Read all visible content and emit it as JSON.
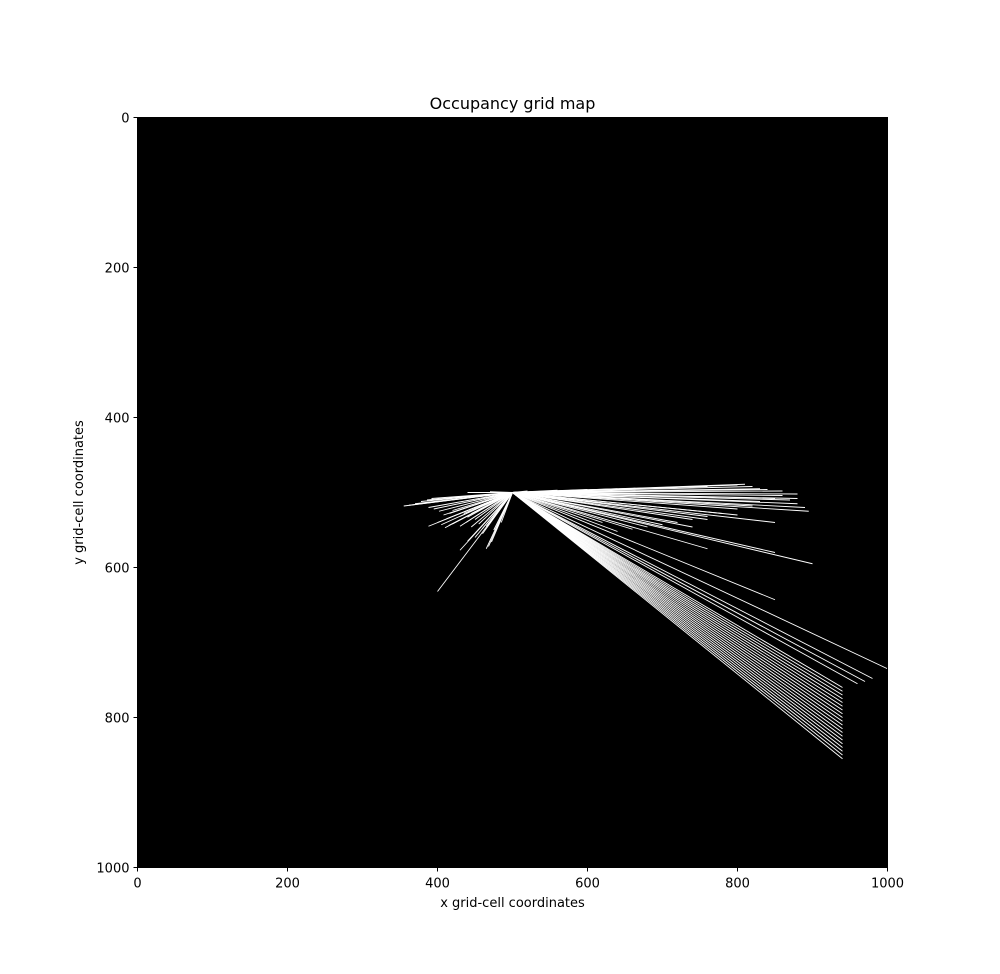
{
  "chart_data": {
    "type": "heatmap",
    "title": "Occupancy grid map",
    "xlabel": "x grid-cell coordinates",
    "ylabel": "y grid-cell coordinates",
    "xlim": [
      0,
      1000
    ],
    "ylim": [
      1000,
      0
    ],
    "xticks": [
      0,
      200,
      400,
      600,
      800,
      1000
    ],
    "yticks": [
      0,
      200,
      400,
      600,
      800,
      1000
    ],
    "colormap": {
      "free": "#ffffff",
      "unknown": "#000000"
    },
    "sensor_origin": [
      500,
      500
    ],
    "ray_endpoints": [
      [
        355,
        518
      ],
      [
        362,
        517
      ],
      [
        370,
        515
      ],
      [
        378,
        512
      ],
      [
        386,
        510
      ],
      [
        392,
        508
      ],
      [
        388,
        520
      ],
      [
        395,
        522
      ],
      [
        402,
        525
      ],
      [
        408,
        530
      ],
      [
        412,
        535
      ],
      [
        416,
        528
      ],
      [
        420,
        524
      ],
      [
        425,
        530
      ],
      [
        430,
        532
      ],
      [
        435,
        528
      ],
      [
        440,
        533
      ],
      [
        445,
        528
      ],
      [
        388,
        545
      ],
      [
        400,
        540
      ],
      [
        405,
        543
      ],
      [
        410,
        547
      ],
      [
        415,
        544
      ],
      [
        420,
        542
      ],
      [
        430,
        545
      ],
      [
        438,
        540
      ],
      [
        445,
        546
      ],
      [
        450,
        536
      ],
      [
        455,
        542
      ],
      [
        460,
        548
      ],
      [
        465,
        545
      ],
      [
        470,
        540
      ],
      [
        475,
        550
      ],
      [
        480,
        545
      ],
      [
        485,
        540
      ],
      [
        430,
        577
      ],
      [
        440,
        565
      ],
      [
        450,
        560
      ],
      [
        460,
        555
      ],
      [
        465,
        575
      ],
      [
        468,
        572
      ],
      [
        472,
        566
      ],
      [
        400,
        632
      ],
      [
        440,
        500
      ],
      [
        470,
        499
      ],
      [
        520,
        498
      ],
      [
        560,
        497
      ],
      [
        600,
        496
      ],
      [
        640,
        495
      ],
      [
        680,
        494
      ],
      [
        720,
        493
      ],
      [
        760,
        492
      ],
      [
        800,
        490
      ],
      [
        810,
        489
      ],
      [
        820,
        492
      ],
      [
        830,
        495
      ],
      [
        840,
        496
      ],
      [
        860,
        498
      ],
      [
        880,
        502
      ],
      [
        880,
        508
      ],
      [
        870,
        510
      ],
      [
        880,
        515
      ],
      [
        890,
        520
      ],
      [
        895,
        525
      ],
      [
        860,
        504
      ],
      [
        850,
        508
      ],
      [
        830,
        512
      ],
      [
        820,
        518
      ],
      [
        800,
        522
      ],
      [
        780,
        528
      ],
      [
        760,
        532
      ],
      [
        740,
        536
      ],
      [
        720,
        540
      ],
      [
        700,
        543
      ],
      [
        680,
        546
      ],
      [
        660,
        549
      ],
      [
        640,
        552
      ],
      [
        620,
        540
      ],
      [
        850,
        540
      ],
      [
        800,
        530
      ],
      [
        760,
        536
      ],
      [
        740,
        546
      ],
      [
        760,
        575
      ],
      [
        850,
        580
      ],
      [
        900,
        595
      ],
      [
        850,
        643
      ],
      [
        1000,
        735
      ],
      [
        980,
        748
      ],
      [
        970,
        752
      ],
      [
        960,
        755
      ],
      [
        940,
        760
      ],
      [
        940,
        765
      ],
      [
        940,
        770
      ],
      [
        940,
        775
      ],
      [
        940,
        780
      ],
      [
        940,
        785
      ],
      [
        940,
        790
      ],
      [
        940,
        795
      ],
      [
        940,
        800
      ],
      [
        940,
        805
      ],
      [
        940,
        810
      ],
      [
        940,
        815
      ],
      [
        940,
        820
      ],
      [
        940,
        825
      ],
      [
        940,
        830
      ],
      [
        940,
        835
      ],
      [
        940,
        840
      ],
      [
        940,
        845
      ],
      [
        940,
        850
      ],
      [
        940,
        855
      ]
    ]
  }
}
